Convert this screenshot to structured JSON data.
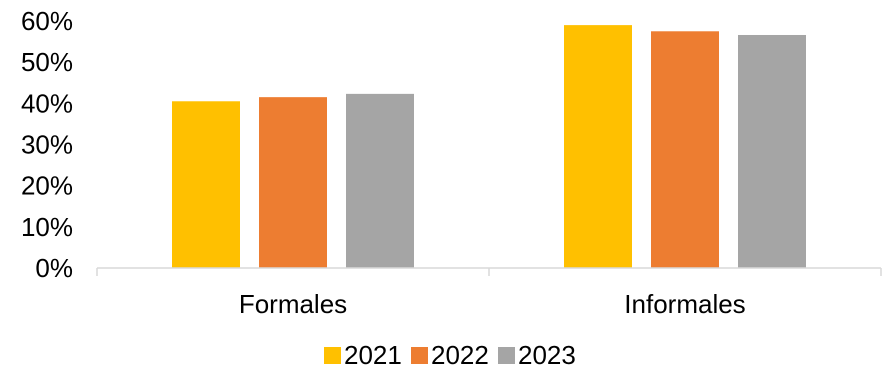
{
  "chart_data": {
    "type": "bar",
    "categories": [
      "Formales",
      "Informales"
    ],
    "series": [
      {
        "name": "2021",
        "values": [
          40.5,
          59.0
        ],
        "color": "#FFC000"
      },
      {
        "name": "2022",
        "values": [
          41.5,
          57.5
        ],
        "color": "#ED7D31"
      },
      {
        "name": "2023",
        "values": [
          42.3,
          56.6
        ],
        "color": "#A5A5A5"
      }
    ],
    "y_ticks": [
      "0%",
      "10%",
      "20%",
      "30%",
      "40%",
      "50%",
      "60%"
    ],
    "ylim": [
      0,
      60
    ],
    "y_unit": "%",
    "grid": false,
    "legend_position": "bottom"
  }
}
